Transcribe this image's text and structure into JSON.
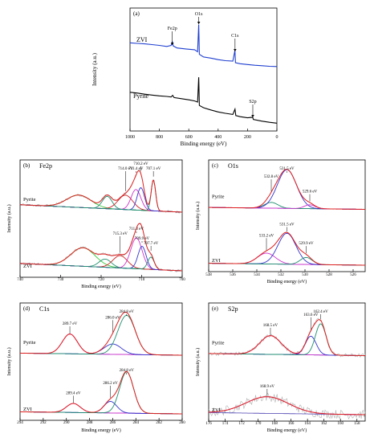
{
  "chart_data": [
    {
      "id": "a",
      "type": "line",
      "panel_label": "(a)",
      "xlabel": "Binding energy (eV)",
      "ylabel": "Intensity (a.u.)",
      "xlim": [
        1000,
        0
      ],
      "x_ticks": [
        "1000",
        "800",
        "600",
        "400",
        "200",
        "0"
      ],
      "series": [
        {
          "name": "ZVI",
          "color": "#1f3fd0",
          "points": [
            [
              1000,
              -0.1
            ],
            [
              950,
              -0.12
            ],
            [
              900,
              -0.14
            ],
            [
              850,
              -0.17
            ],
            [
              800,
              -0.2
            ],
            [
              750,
              -0.24
            ],
            [
              720,
              -0.2
            ],
            [
              712,
              -0.05
            ],
            [
              706,
              -0.22
            ],
            [
              680,
              -0.3
            ],
            [
              620,
              -0.34
            ],
            [
              560,
              -0.37
            ],
            [
              540,
              -0.45
            ],
            [
              532,
              0.62
            ],
            [
              528,
              -0.55
            ],
            [
              500,
              -0.65
            ],
            [
              450,
              -0.7
            ],
            [
              400,
              -0.76
            ],
            [
              350,
              -0.8
            ],
            [
              300,
              -0.82
            ],
            [
              286,
              -0.4
            ],
            [
              282,
              -0.88
            ],
            [
              250,
              -0.92
            ],
            [
              200,
              -0.95
            ],
            [
              150,
              -0.98
            ],
            [
              100,
              -1.0
            ],
            [
              50,
              -1.02
            ],
            [
              0,
              -1.03
            ]
          ]
        },
        {
          "name": "Pyrite",
          "color": "#000000",
          "points": [
            [
              1000,
              0.05
            ],
            [
              950,
              0.02
            ],
            [
              900,
              -0.02
            ],
            [
              850,
              -0.05
            ],
            [
              800,
              -0.08
            ],
            [
              750,
              -0.1
            ],
            [
              720,
              -0.12
            ],
            [
              710,
              -0.06
            ],
            [
              700,
              -0.14
            ],
            [
              650,
              -0.18
            ],
            [
              600,
              -0.22
            ],
            [
              560,
              -0.26
            ],
            [
              540,
              -0.3
            ],
            [
              532,
              0.58
            ],
            [
              528,
              -0.42
            ],
            [
              500,
              -0.5
            ],
            [
              450,
              -0.58
            ],
            [
              400,
              -0.65
            ],
            [
              350,
              -0.7
            ],
            [
              300,
              -0.74
            ],
            [
              285,
              -0.55
            ],
            [
              280,
              -0.78
            ],
            [
              250,
              -0.82
            ],
            [
              200,
              -0.86
            ],
            [
              165,
              -0.84
            ],
            [
              160,
              -0.92
            ],
            [
              100,
              -0.98
            ],
            [
              50,
              -1.02
            ],
            [
              0,
              -1.05
            ]
          ]
        }
      ],
      "annotations": [
        {
          "text": "Fe2p",
          "x": 712
        },
        {
          "text": "O1s",
          "x": 532
        },
        {
          "text": "C1s",
          "x": 285
        },
        {
          "text": "S2p",
          "x": 164
        }
      ]
    },
    {
      "id": "b",
      "type": "line",
      "panel_label": "(b)",
      "title": "Fe2p",
      "xlabel": "Binding energy (eV)",
      "ylabel": "Intensity (a.u.)",
      "xlim": [
        740,
        700
      ],
      "x_ticks": [
        "740",
        "730",
        "720",
        "710",
        "700"
      ],
      "groups": [
        "Pyrite",
        "ZVI"
      ],
      "peak_labels": {
        "Pyrite": [
          "714.0 eV",
          "711.4 eV",
          "710.2 eV",
          "707.1 eV"
        ],
        "ZVI": [
          "711.3 eV",
          "715.3 eV",
          "709.9 eV",
          "707.7 eV"
        ]
      },
      "components": {
        "Pyrite": [
          {
            "center": 725.5,
            "width": 3.0,
            "height": 0.3,
            "color": "#3acc3a"
          },
          {
            "center": 718.5,
            "width": 1.2,
            "height": 0.3,
            "color": "#1f8f6f"
          },
          {
            "center": 714.0,
            "width": 1.8,
            "height": 0.35,
            "color": "#cc2222"
          },
          {
            "center": 711.4,
            "width": 1.2,
            "height": 0.5,
            "color": "#cc33cc"
          },
          {
            "center": 710.2,
            "width": 0.9,
            "height": 0.55,
            "color": "#3333cc"
          },
          {
            "center": 707.1,
            "width": 0.55,
            "height": 0.75,
            "color": "#1f8f6f"
          }
        ],
        "ZVI": [
          {
            "center": 724.5,
            "width": 3.0,
            "height": 0.45,
            "color": "#3acc3a"
          },
          {
            "center": 719.0,
            "width": 1.5,
            "height": 0.2,
            "color": "#1f8f6f"
          },
          {
            "center": 715.3,
            "width": 1.8,
            "height": 0.3,
            "color": "#cc2222"
          },
          {
            "center": 711.3,
            "width": 1.4,
            "height": 0.75,
            "color": "#cc33cc"
          },
          {
            "center": 709.9,
            "width": 1.0,
            "height": 0.55,
            "color": "#3333cc"
          },
          {
            "center": 707.7,
            "width": 0.8,
            "height": 0.3,
            "color": "#1f8f6f"
          }
        ]
      }
    },
    {
      "id": "c",
      "type": "line",
      "panel_label": "(c)",
      "title": "O1s",
      "xlabel": "Binding energy (eV)",
      "ylabel": "Intensity (a.u.)",
      "xlim": [
        538,
        525
      ],
      "x_ticks": [
        "538",
        "536",
        "534",
        "532",
        "530",
        "528",
        "526"
      ],
      "groups": [
        "Pyrite",
        "ZVI"
      ],
      "peak_labels": {
        "Pyrite": [
          "531.5 eV",
          "532.8 eV",
          "529.6 eV"
        ],
        "ZVI": [
          "531.5 eV",
          "533.2 eV",
          "529.9 eV"
        ]
      },
      "components": {
        "Pyrite": [
          {
            "center": 532.8,
            "width": 0.55,
            "height": 0.15,
            "color": "#1f8f6f"
          },
          {
            "center": 531.5,
            "width": 0.8,
            "height": 1.0,
            "color": "#3333cc"
          },
          {
            "center": 529.6,
            "width": 0.45,
            "height": 0.1,
            "color": "#cc33cc"
          }
        ],
        "ZVI": [
          {
            "center": 533.2,
            "width": 0.75,
            "height": 0.28,
            "color": "#cc33cc"
          },
          {
            "center": 531.5,
            "width": 0.75,
            "height": 0.8,
            "color": "#3333cc"
          },
          {
            "center": 529.9,
            "width": 0.5,
            "height": 0.18,
            "color": "#1f8f6f"
          }
        ]
      }
    },
    {
      "id": "d",
      "type": "line",
      "panel_label": "(d)",
      "title": "C1s",
      "xlabel": "Binding energy (eV)",
      "ylabel": "Intensity (a.u.)",
      "xlim": [
        294,
        280
      ],
      "x_ticks": [
        "294",
        "292",
        "290",
        "288",
        "286",
        "284",
        "282",
        "280"
      ],
      "groups": [
        "Pyrite",
        "ZVI"
      ],
      "peak_labels": {
        "Pyrite": [
          "289.7 eV",
          "286.0 eV",
          "284.8 eV"
        ],
        "ZVI": [
          "289.4 eV",
          "286.2 eV",
          "284.8 eV"
        ]
      },
      "components": {
        "Pyrite": [
          {
            "center": 289.7,
            "width": 0.65,
            "height": 0.48,
            "color": "#cc33cc"
          },
          {
            "center": 286.0,
            "width": 0.75,
            "height": 0.25,
            "color": "#3333cc"
          },
          {
            "center": 284.8,
            "width": 0.75,
            "height": 0.95,
            "color": "#1f8f6f"
          }
        ],
        "ZVI": [
          {
            "center": 289.4,
            "width": 0.6,
            "height": 0.22,
            "color": "#cc33cc"
          },
          {
            "center": 286.2,
            "width": 0.55,
            "height": 0.28,
            "color": "#3333cc"
          },
          {
            "center": 284.8,
            "width": 0.6,
            "height": 1.0,
            "color": "#1f8f6f"
          }
        ]
      }
    },
    {
      "id": "e",
      "type": "line",
      "panel_label": "(e)",
      "title": "S2p",
      "xlabel": "Binding energy (eV)",
      "ylabel": "Intensity (a.u.)",
      "xlim": [
        176,
        157
      ],
      "x_ticks": [
        "176",
        "174",
        "172",
        "170",
        "168",
        "166",
        "164",
        "162",
        "160",
        "158"
      ],
      "groups": [
        "Pyrite",
        "ZVI"
      ],
      "peak_labels": {
        "Pyrite": [
          "168.5 eV",
          "163.6 eV",
          "162.4 eV"
        ],
        "ZVI": [
          "168.9 eV"
        ]
      },
      "components": {
        "Pyrite": [
          {
            "center": 168.5,
            "width": 1.3,
            "height": 0.45,
            "color": "#cc33cc"
          },
          {
            "center": 163.6,
            "width": 0.65,
            "height": 0.45,
            "color": "#3333cc"
          },
          {
            "center": 162.4,
            "width": 0.65,
            "height": 0.75,
            "color": "#1f8f6f"
          }
        ],
        "ZVI": [
          {
            "center": 168.9,
            "width": 2.6,
            "height": 0.4,
            "color": "#cc33cc"
          }
        ]
      }
    }
  ]
}
